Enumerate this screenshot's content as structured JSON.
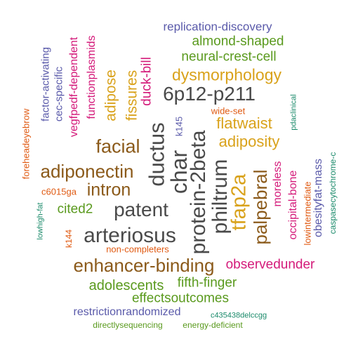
{
  "colors": {
    "gray": "#4a4a4a",
    "brown": "#8b5a1a",
    "gold": "#d9a21b",
    "green": "#5a9a1e",
    "purple": "#5a5aaa",
    "magenta": "#d41a7a",
    "orange": "#e05a12",
    "teal": "#1a8a6a"
  },
  "words": [
    "replication-discovery",
    "almond-shaped",
    "neural-crest-cell",
    "dysmorphology",
    "6p12-p211",
    "flatwaist",
    "wide-set",
    "adiposity",
    "facial",
    "adiponectin",
    "intron",
    "patent",
    "arteriosus",
    "cited2",
    "c6015ga",
    "enhancer-binding",
    "observedunder",
    "non-completers",
    "adolescents",
    "fifth-finger",
    "effectsoutcomes",
    "restrictionrandomized",
    "directlysequencing",
    "energy-deficient",
    "c435438delccgg",
    "factor-activating",
    "cec-specific",
    "vegfpedf-dependent",
    "functionplasmids",
    "adipose",
    "fissures",
    "duck-bill",
    "ductus",
    "char",
    "protein-2beta",
    "k145",
    "philtrum",
    "tfap2a",
    "palpebral",
    "moreless",
    "occipital-bone",
    "lowintermediate",
    "obesityfat-mass",
    "caspasecytochrome-c",
    "pdaclinical",
    "foreheadeyebrow",
    "lowhigh-fat",
    "k144"
  ]
}
